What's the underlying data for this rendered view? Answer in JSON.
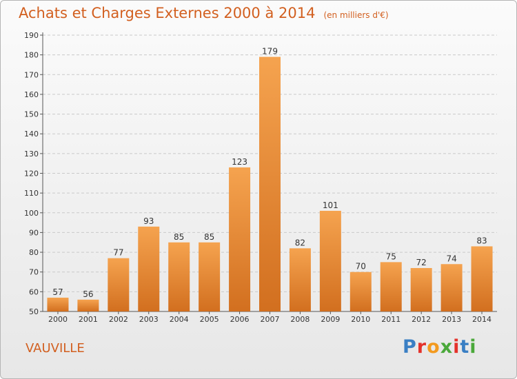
{
  "title": "Achats et Charges Externes 2000 à 2014",
  "unit_label": "(en milliers d'€)",
  "commune": "VAUVILLE",
  "logo": {
    "text": "Proxiti",
    "colors": [
      "#3a7fc4",
      "#e4322b",
      "#f39a1f",
      "#4aa83a",
      "#e4322b",
      "#3a7fc4",
      "#4aa83a"
    ]
  },
  "colors": {
    "title": "#d25f1f",
    "bar_light": "#f5a34f",
    "bar_dark": "#d26f1f",
    "grid": "#c9c9c9"
  },
  "chart_data": {
    "type": "bar",
    "title": "Achats et Charges Externes 2000 à 2014",
    "subtitle": "(en milliers d'€)",
    "categories": [
      "2000",
      "2001",
      "2002",
      "2003",
      "2004",
      "2005",
      "2006",
      "2007",
      "2008",
      "2009",
      "2010",
      "2011",
      "2012",
      "2013",
      "2014"
    ],
    "values": [
      57,
      56,
      77,
      93,
      85,
      85,
      123,
      179,
      82,
      101,
      70,
      75,
      72,
      74,
      83
    ],
    "ylim": [
      50,
      190
    ],
    "yticks": [
      50,
      60,
      70,
      80,
      90,
      100,
      110,
      120,
      130,
      140,
      150,
      160,
      170,
      180,
      190
    ],
    "grid": true,
    "data_labels": true
  }
}
